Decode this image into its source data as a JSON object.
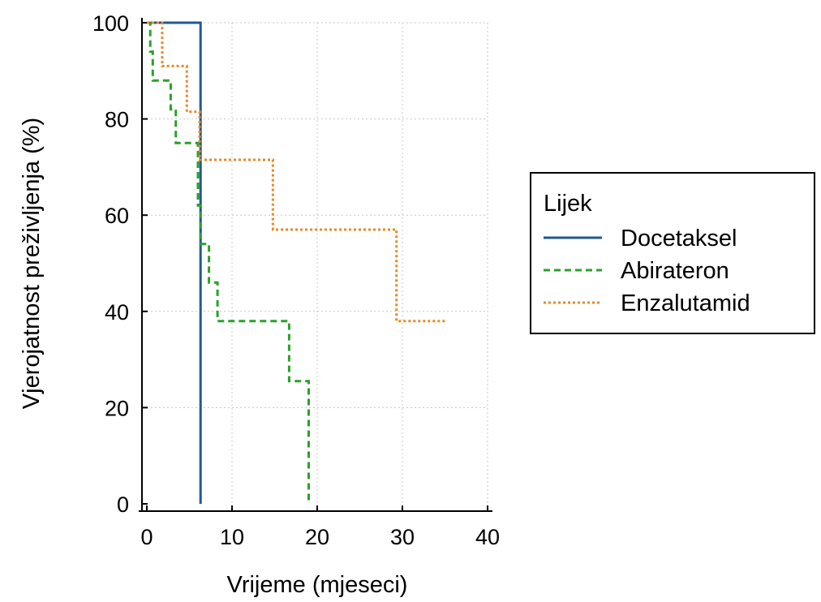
{
  "chart_data": {
    "type": "line",
    "subtype": "kaplan-meier step",
    "title": "",
    "xlabel": "Vrijeme (mjeseci)",
    "ylabel": "Vjerojatnost preživljenja (%)",
    "xlim": [
      0,
      40
    ],
    "ylim": [
      0,
      100
    ],
    "xticks": [
      0,
      10,
      20,
      30,
      40
    ],
    "yticks": [
      0,
      20,
      40,
      60,
      80,
      100
    ],
    "grid": true,
    "legend": {
      "title": "Lijek",
      "position": "right",
      "entries": [
        "Docetaksel",
        "Abirateron",
        "Enzalutamid"
      ]
    },
    "series": [
      {
        "name": "Docetaksel",
        "color": "#1f5a8f",
        "dash": "solid",
        "x": [
          0,
          6.3,
          6.3
        ],
        "y": [
          100,
          100,
          0
        ]
      },
      {
        "name": "Abirateron",
        "color": "#2ca02c",
        "dash": "dashed",
        "x": [
          0,
          0.4,
          0.4,
          0.7,
          0.7,
          2.8,
          2.8,
          3.4,
          3.4,
          6.0,
          6.0,
          6.3,
          6.3,
          7.3,
          7.3,
          8.3,
          8.3,
          16.7,
          16.7,
          19.0,
          19.0
        ],
        "y": [
          100,
          100,
          94,
          94,
          88,
          88,
          82,
          82,
          75,
          75,
          62,
          62,
          54,
          54,
          46,
          46,
          38,
          38,
          25.5,
          25.5,
          0
        ]
      },
      {
        "name": "Enzalutamid",
        "color": "#e8892a",
        "dash": "dotted",
        "x": [
          0,
          1.8,
          1.8,
          4.7,
          4.7,
          6.2,
          6.2,
          14.8,
          14.8,
          29.3,
          29.3,
          35.0
        ],
        "y": [
          100,
          100,
          91,
          91,
          81.5,
          81.5,
          71.5,
          71.5,
          57,
          57,
          38,
          38
        ]
      }
    ]
  }
}
